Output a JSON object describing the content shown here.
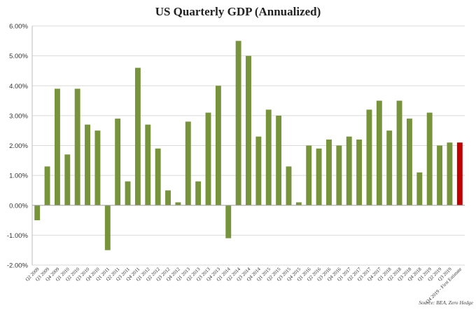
{
  "chart_data": {
    "type": "bar",
    "title": "US Quarterly GDP (Annualized)",
    "source": "Source: BEA, Zero Hedge",
    "ylim": [
      -2,
      6
    ],
    "yticks": [
      6,
      5,
      4,
      3,
      2,
      1,
      0,
      -1,
      -2
    ],
    "ytick_labels": [
      "6.00%",
      "5.00%",
      "4.00%",
      "3.00%",
      "2.00%",
      "1.00%",
      "0.00%",
      "-1.00%",
      "-2.00%"
    ],
    "grid": true,
    "colors": {
      "bar": "#77933c",
      "highlight": "#c00000",
      "grid": "#d9d9d9",
      "axis": "#bfbfbf"
    },
    "categories": [
      "Q2 2009",
      "Q3 2009",
      "Q4 2009",
      "Q1 2010",
      "Q2 2010",
      "Q3 2010",
      "Q4 2010",
      "Q1 2011",
      "Q2 2011",
      "Q3 2011",
      "Q4 2011",
      "Q1 2012",
      "Q2 2012",
      "Q3 2012",
      "Q4 2012",
      "Q1 2013",
      "Q2 2013",
      "Q3 2013",
      "Q4 2013",
      "Q1 2014",
      "Q2 2014",
      "Q3 2014",
      "Q4 2014",
      "Q1 2015",
      "Q2 2015",
      "Q3 2015",
      "Q4 2015",
      "Q1 2016",
      "Q2 2016",
      "Q3 2016",
      "Q4 2016",
      "Q1 2017",
      "Q2 2017",
      "Q3 2017",
      "Q4 2017",
      "Q1 2018",
      "Q2 2018",
      "Q3 2018",
      "Q4 2018",
      "Q1 2019",
      "Q2 2019",
      "Q3 2019",
      "Q4 2019 - First Estimate"
    ],
    "values": [
      -0.5,
      1.3,
      3.9,
      1.7,
      3.9,
      2.7,
      2.5,
      -1.5,
      2.9,
      0.8,
      4.6,
      2.7,
      1.9,
      0.5,
      0.1,
      2.8,
      0.8,
      3.1,
      4.0,
      -1.1,
      5.5,
      5.0,
      2.3,
      3.2,
      3.0,
      1.3,
      0.1,
      2.0,
      1.9,
      2.2,
      2.0,
      2.3,
      2.2,
      3.2,
      3.5,
      2.5,
      3.5,
      2.9,
      1.1,
      3.1,
      2.0,
      2.1,
      2.1
    ],
    "highlight_index": 42
  }
}
